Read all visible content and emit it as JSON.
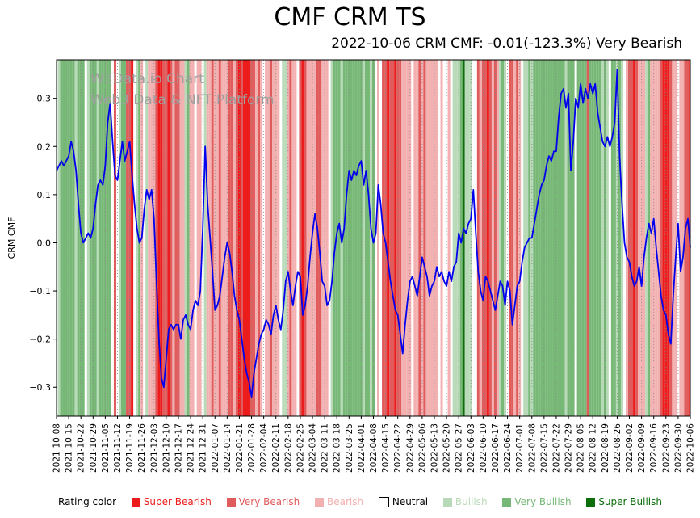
{
  "watermark": {
    "line1": "W3Data.io Chart",
    "line2": "Web3 Data & NFT Platform"
  },
  "legend": {
    "label": "Rating color",
    "items": [
      {
        "name": "Super Bearish",
        "color": "#ed1c1c"
      },
      {
        "name": "Very Bearish",
        "color": "#e05b5b"
      },
      {
        "name": "Bearish",
        "color": "#f3b0b0"
      },
      {
        "name": "Neutral",
        "color": "#ffffff",
        "text_color": "#000000"
      },
      {
        "name": "Bullish",
        "color": "#b9dab9"
      },
      {
        "name": "Very Bullish",
        "color": "#77b877"
      },
      {
        "name": "Super Bullish",
        "color": "#0b6e0b"
      }
    ]
  },
  "chart_data": {
    "type": "line",
    "title": "CMF CRM TS",
    "subtitle": "2022-10-06 CRM CMF: -0.01(-123.3%) Very Bearish",
    "ylabel": "CRM CMF",
    "line_color": "#0000ee",
    "ylim": [
      -0.36,
      0.38
    ],
    "yticks": [
      0.3,
      0.2,
      0.1,
      0.0,
      -0.1,
      -0.2,
      -0.3
    ],
    "ytick_labels": [
      "0.3",
      "0.2",
      "0.1",
      "0.0",
      "−0.1",
      "−0.2",
      "−0.3"
    ],
    "x_tick_day_step": 5,
    "x_tick_labels": [
      "2021-10-08",
      "2021-10-15",
      "2021-10-22",
      "2021-10-29",
      "2021-11-05",
      "2021-11-12",
      "2021-11-19",
      "2021-11-26",
      "2021-12-03",
      "2021-12-10",
      "2021-12-17",
      "2021-12-24",
      "2021-12-31",
      "2022-01-07",
      "2022-01-14",
      "2022-01-21",
      "2022-01-28",
      "2022-02-04",
      "2022-02-11",
      "2022-02-18",
      "2022-02-25",
      "2022-03-04",
      "2022-03-11",
      "2022-03-18",
      "2022-03-25",
      "2022-04-01",
      "2022-04-08",
      "2022-04-15",
      "2022-04-22",
      "2022-04-29",
      "2022-05-06",
      "2022-05-13",
      "2022-05-20",
      "2022-05-27",
      "2022-06-03",
      "2022-06-10",
      "2022-06-17",
      "2022-06-24",
      "2022-07-01",
      "2022-07-08",
      "2022-07-15",
      "2022-07-22",
      "2022-07-29",
      "2022-08-05",
      "2022-08-12",
      "2022-08-19",
      "2022-08-26",
      "2022-09-02",
      "2022-09-09",
      "2022-09-16",
      "2022-09-23",
      "2022-09-30",
      "2022-10-06"
    ],
    "series": [
      {
        "name": "CRM CMF",
        "values": [
          0.15,
          0.16,
          0.17,
          0.16,
          0.17,
          0.18,
          0.21,
          0.19,
          0.15,
          0.08,
          0.02,
          0.0,
          0.01,
          0.02,
          0.01,
          0.03,
          0.08,
          0.12,
          0.13,
          0.12,
          0.16,
          0.25,
          0.29,
          0.21,
          0.14,
          0.13,
          0.17,
          0.21,
          0.17,
          0.19,
          0.21,
          0.14,
          0.08,
          0.03,
          0.0,
          0.01,
          0.07,
          0.11,
          0.09,
          0.11,
          0.05,
          -0.08,
          -0.2,
          -0.28,
          -0.3,
          -0.24,
          -0.18,
          -0.17,
          -0.18,
          -0.17,
          -0.17,
          -0.2,
          -0.16,
          -0.15,
          -0.17,
          -0.18,
          -0.14,
          -0.12,
          -0.13,
          -0.1,
          0.03,
          0.2,
          0.08,
          0.01,
          -0.06,
          -0.14,
          -0.13,
          -0.11,
          -0.07,
          -0.03,
          0.0,
          -0.02,
          -0.06,
          -0.11,
          -0.14,
          -0.16,
          -0.2,
          -0.24,
          -0.27,
          -0.29,
          -0.32,
          -0.27,
          -0.24,
          -0.21,
          -0.19,
          -0.18,
          -0.16,
          -0.17,
          -0.19,
          -0.15,
          -0.13,
          -0.16,
          -0.18,
          -0.14,
          -0.08,
          -0.06,
          -0.1,
          -0.13,
          -0.09,
          -0.06,
          -0.07,
          -0.15,
          -0.13,
          -0.09,
          -0.03,
          0.02,
          0.06,
          0.03,
          -0.02,
          -0.08,
          -0.09,
          -0.13,
          -0.12,
          -0.08,
          -0.02,
          0.02,
          0.04,
          0.0,
          0.03,
          0.1,
          0.15,
          0.13,
          0.15,
          0.14,
          0.16,
          0.17,
          0.12,
          0.15,
          0.1,
          0.03,
          0.0,
          0.02,
          0.12,
          0.08,
          0.02,
          0.0,
          -0.04,
          -0.08,
          -0.11,
          -0.14,
          -0.15,
          -0.19,
          -0.23,
          -0.17,
          -0.12,
          -0.08,
          -0.07,
          -0.09,
          -0.11,
          -0.07,
          -0.03,
          -0.05,
          -0.07,
          -0.11,
          -0.09,
          -0.08,
          -0.05,
          -0.07,
          -0.06,
          -0.08,
          -0.09,
          -0.06,
          -0.08,
          -0.05,
          -0.04,
          0.02,
          0.0,
          0.03,
          0.02,
          0.04,
          0.05,
          0.11,
          0.02,
          -0.06,
          -0.1,
          -0.12,
          -0.07,
          -0.08,
          -0.1,
          -0.12,
          -0.14,
          -0.11,
          -0.08,
          -0.09,
          -0.13,
          -0.08,
          -0.1,
          -0.17,
          -0.13,
          -0.09,
          -0.08,
          -0.04,
          -0.01,
          0.0,
          0.01,
          0.01,
          0.04,
          0.07,
          0.1,
          0.12,
          0.13,
          0.16,
          0.18,
          0.17,
          0.19,
          0.19,
          0.26,
          0.31,
          0.32,
          0.28,
          0.31,
          0.15,
          0.21,
          0.3,
          0.28,
          0.33,
          0.29,
          0.32,
          0.3,
          0.33,
          0.31,
          0.33,
          0.27,
          0.24,
          0.21,
          0.2,
          0.22,
          0.2,
          0.22,
          0.25,
          0.36,
          0.18,
          0.08,
          0.0,
          -0.03,
          -0.04,
          -0.07,
          -0.09,
          -0.08,
          -0.05,
          -0.09,
          -0.03,
          0.01,
          0.04,
          0.02,
          0.05,
          -0.01,
          -0.06,
          -0.11,
          -0.14,
          -0.15,
          -0.19,
          -0.21,
          -0.11,
          -0.03,
          0.04,
          -0.06,
          -0.03,
          0.03,
          0.05,
          -0.01
        ]
      }
    ],
    "background_ratings": {
      "codes": "NUYYYYYYUYYYNUYYYUYYYYYNVNUYYVVSNUYBNUBBBVSSVVSVBVVBBUYBBNBBNUBBVBBVBBBVVBVSVSSSVVBVBNBBVBBBNUUBVBBNVSVBBBBVVBBBNUYYYUYYYYYYYYUYYUYNBNVVSVVSVVBBBBNBBVBVBBBBBNBNNBNUUUYPUUUNNVBVVSVBVBUYUNVVBVBNUUYUYYYYYYYYYYYYYUYYYNYYYYVYYYYYUYUNYYUYUNBVVSVBBBUYBBBBVSSSVBBNBBVVSV",
      "map": {
        "S": {
          "name": "Super Bearish",
          "color": "#ed1c1c"
        },
        "V": {
          "name": "Very Bearish",
          "color": "#e05b5b"
        },
        "B": {
          "name": "Bearish",
          "color": "#f3b0b0"
        },
        "N": {
          "name": "Neutral",
          "color": "#ffffff"
        },
        "U": {
          "name": "Bullish",
          "color": "#b9dab9"
        },
        "Y": {
          "name": "Very Bullish",
          "color": "#77b877"
        },
        "P": {
          "name": "Super Bullish",
          "color": "#0b6e0b"
        }
      }
    }
  }
}
